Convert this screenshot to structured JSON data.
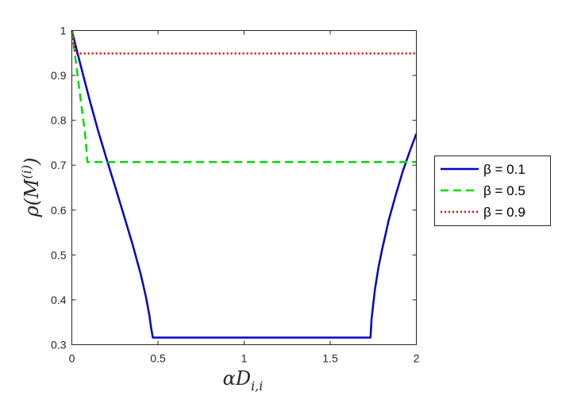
{
  "chart_data": {
    "type": "line",
    "xlabel": "αD",
    "xlabel_sub": "i,i",
    "ylabel_rho": "ρ(M",
    "ylabel_sup": "(i)",
    "ylabel_close": ")",
    "xlim": [
      0,
      2
    ],
    "ylim": [
      0.3,
      1
    ],
    "xticks": [
      0,
      0.5,
      1,
      1.5,
      2
    ],
    "xtick_labels": [
      "0",
      "0.5",
      "1",
      "1.5",
      "2"
    ],
    "yticks": [
      0.3,
      0.4,
      0.5,
      0.6,
      0.7,
      0.8,
      0.9,
      1
    ],
    "ytick_labels": [
      "0.3",
      "0.4",
      "0.5",
      "0.6",
      "0.7",
      "0.8",
      "0.9",
      "1"
    ],
    "grid": false,
    "legend_placement": "outside-right",
    "series": [
      {
        "name": "β = 0.1",
        "color": "#0000cc",
        "style": "solid",
        "x": [
          0,
          0.05,
          0.1,
          0.15,
          0.2,
          0.25,
          0.3,
          0.35,
          0.4,
          0.43,
          0.45,
          0.46,
          0.47,
          0.48,
          1.0,
          1.5,
          1.734,
          1.74,
          1.75,
          1.76,
          1.78,
          1.8,
          1.84,
          1.88,
          1.92,
          1.96,
          2.0
        ],
        "y": [
          1.0,
          0.924,
          0.85,
          0.78,
          0.716,
          0.654,
          0.591,
          0.527,
          0.457,
          0.407,
          0.366,
          0.338,
          0.316,
          0.316,
          0.316,
          0.316,
          0.316,
          0.357,
          0.391,
          0.424,
          0.472,
          0.51,
          0.578,
          0.633,
          0.685,
          0.729,
          0.77
        ]
      },
      {
        "name": "β = 0.5",
        "color": "#00dd00",
        "style": "dashed",
        "x": [
          0,
          0.02,
          0.04,
          0.06,
          0.08,
          0.09,
          1.0,
          2.0
        ],
        "y": [
          1.0,
          0.94,
          0.88,
          0.82,
          0.76,
          0.707,
          0.707,
          0.707
        ]
      },
      {
        "name": "β = 0.9",
        "color": "#dd0000",
        "style": "dotted",
        "x": [
          0,
          0.01,
          0.02,
          2.0
        ],
        "y": [
          1.0,
          0.97,
          0.949,
          0.949
        ]
      }
    ]
  }
}
